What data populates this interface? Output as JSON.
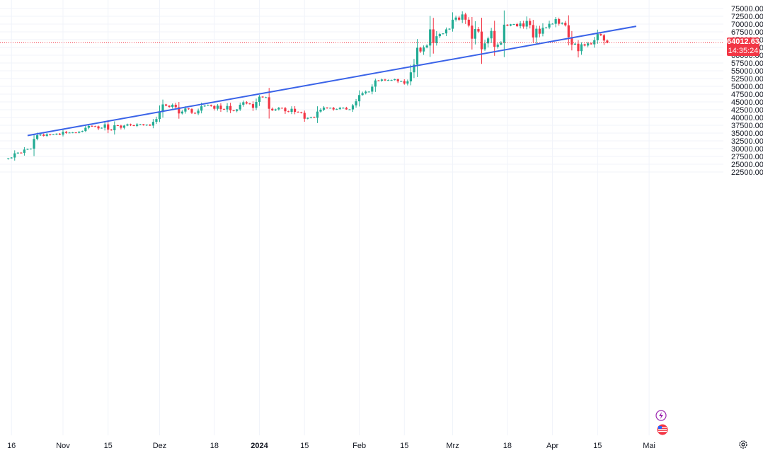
{
  "chart_data": {
    "type": "candlestick",
    "y_axis": {
      "position": "right",
      "ticks": [
        22500,
        25000,
        27500,
        30000,
        32500,
        35000,
        37500,
        40000,
        42500,
        45000,
        47500,
        50000,
        52500,
        55000,
        57500,
        60000,
        62500,
        65000,
        67500,
        70000,
        72500,
        75000
      ],
      "tick_labels": [
        "22500.00",
        "25000.00",
        "27500.00",
        "30000.00",
        "32500.00",
        "35000.00",
        "37500.00",
        "40000.00",
        "42500.00",
        "45000.00",
        "47500.00",
        "50000.00",
        "52500.00",
        "55000.00",
        "57500.00",
        "60000.00",
        "62500.00",
        "65000.00",
        "67500.00",
        "70000.00",
        "72500.00",
        "75000.00"
      ]
    },
    "x_axis": {
      "tick_labels": [
        "16",
        "Nov",
        "15",
        "Dez",
        "18",
        "2024",
        "15",
        "Feb",
        "15",
        "Mrz",
        "18",
        "Apr",
        "15",
        "Mai"
      ],
      "tick_dates": [
        "2023-10-16",
        "2023-11-01",
        "2023-11-15",
        "2023-12-01",
        "2023-12-18",
        "2024-01-01",
        "2024-01-15",
        "2024-02-01",
        "2024-02-15",
        "2024-03-01",
        "2024-03-18",
        "2024-04-01",
        "2024-04-15",
        "2024-05-01"
      ],
      "bold_labels": [
        "2024"
      ]
    },
    "date_range": [
      "2023-10-15",
      "2024-04-24"
    ],
    "closes": [
      26900,
      27150,
      28500,
      28700,
      28650,
      29700,
      29900,
      30000,
      33100,
      34300,
      34500,
      34100,
      34600,
      34400,
      34550,
      34800,
      34500,
      35400,
      35050,
      35150,
      35200,
      35100,
      35450,
      35650,
      36700,
      37300,
      37200,
      37150,
      36500,
      36700,
      37800,
      36100,
      35900,
      37500,
      37400,
      36700,
      37400,
      37800,
      37500,
      37300,
      37800,
      37800,
      37500,
      37700,
      37400,
      38600,
      39500,
      41900,
      44200,
      43800,
      43400,
      44100,
      43300,
      41300,
      41900,
      42900,
      42700,
      41500,
      41300,
      42200,
      43600,
      43800,
      44000,
      43700,
      42800,
      43800,
      42700,
      42600,
      43700,
      42300,
      42100,
      42600,
      44100,
      44900,
      44500,
      44300,
      43100,
      45000,
      46700,
      46500,
      46500,
      42800,
      42300,
      42600,
      43100,
      43000,
      42000,
      41800,
      42800,
      41800,
      41700,
      41500,
      39600,
      39900,
      40100,
      39900,
      41900,
      42500,
      43200,
      43000,
      43100,
      42600,
      42700,
      43100,
      43100,
      42600,
      42600,
      43900,
      45200,
      47200,
      47800,
      48300,
      48300,
      49900,
      51900,
      51800,
      52200,
      51900,
      52000,
      52000,
      52300,
      51600,
      51700,
      50900,
      51600,
      54500,
      57000,
      62400,
      61200,
      62500,
      63100,
      68300,
      63900,
      66100,
      66800,
      67000,
      68300,
      68500,
      71400,
      72100,
      71400,
      73100,
      71400,
      69500,
      65300,
      68400,
      67600,
      61900,
      63800,
      65400,
      67800,
      62700,
      63400,
      64000,
      69800,
      69500,
      69900,
      70000,
      69300,
      70200,
      69200,
      71000,
      69700,
      65700,
      68500,
      66900,
      68800,
      68900,
      70100,
      70100,
      71600,
      70100,
      70400,
      69600,
      65800,
      63400,
      63700,
      61300,
      63500,
      63100,
      63800,
      63500,
      64800,
      66800,
      66400,
      64700,
      64012.63
    ],
    "last_price": "64012.63",
    "countdown": "14:35:24",
    "trendline": {
      "start": {
        "date": "2023-10-21",
        "price": 34200
      },
      "end": {
        "date": "2024-04-27",
        "price": 69300
      }
    },
    "colors": {
      "up": "#22ab94",
      "down": "#f23645",
      "trendline": "#3a63e8",
      "grid": "#f0f3fa",
      "text": "#131722"
    }
  },
  "icons": {
    "flash": "lightning-icon",
    "flag": "us-flag-icon",
    "settings": "gear-icon"
  }
}
